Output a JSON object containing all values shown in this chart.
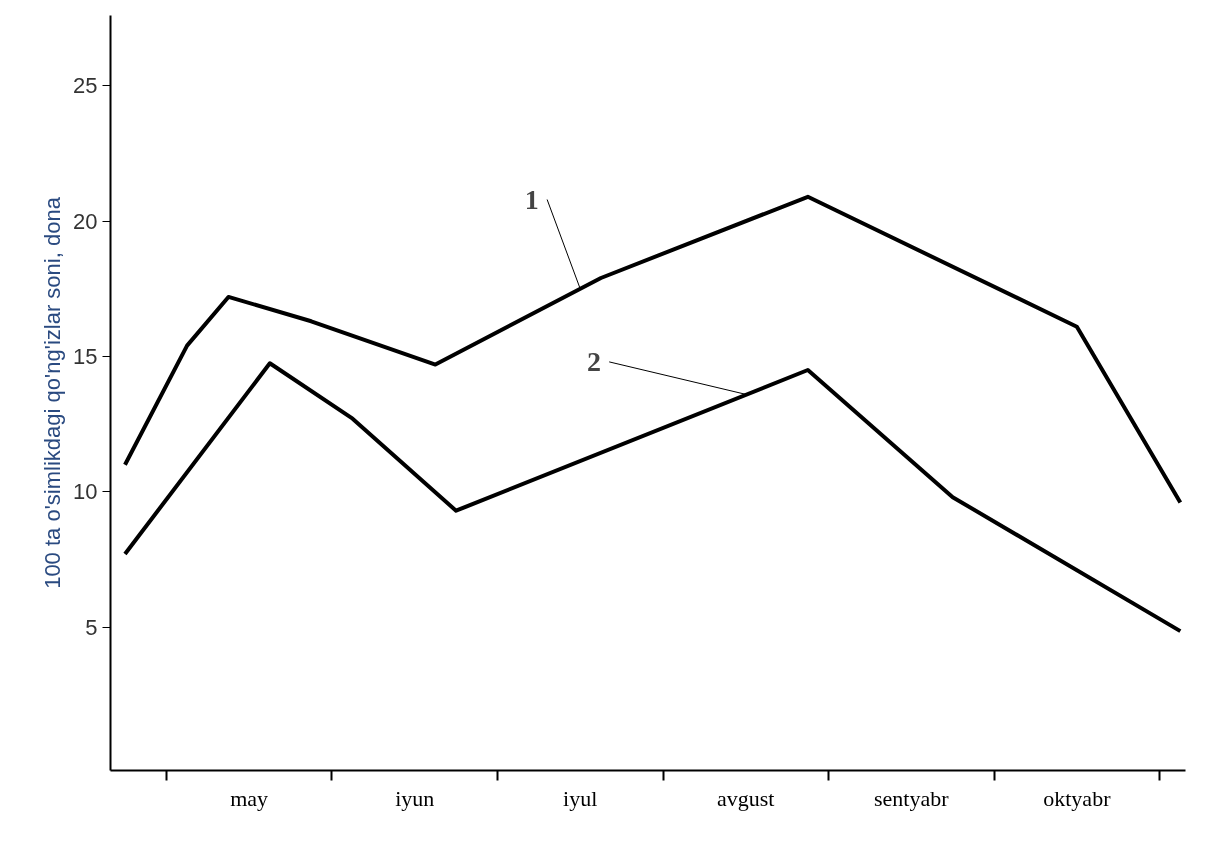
{
  "chart_data": {
    "type": "line",
    "ylabel": "100 ta o'simlikdagi qo'ng'izlar soni, dona",
    "categories": [
      null,
      null,
      null,
      null,
      null,
      null,
      "may",
      null,
      null,
      null,
      null,
      null,
      null,
      null,
      "iyun",
      null,
      null,
      null,
      null,
      null,
      null,
      null,
      "iyul",
      null,
      null,
      null,
      null,
      null,
      null,
      null,
      "avgust",
      null,
      null,
      null,
      null,
      null,
      null,
      null,
      "sentyabr",
      null,
      null,
      null,
      null,
      null,
      null,
      null,
      "oktyabr",
      null,
      null,
      null,
      null,
      null
    ],
    "ylim": [
      -0.3,
      27.6
    ],
    "yticks": [
      5,
      10,
      15,
      20,
      25
    ],
    "grid": false,
    "marker": "none",
    "line_style": "solid",
    "series": [
      {
        "color": "#000000",
        "values": [
          11.0,
          null,
          null,
          15.4,
          null,
          17.2,
          null,
          null,
          null,
          16.3,
          null,
          null,
          null,
          null,
          null,
          14.7,
          null,
          null,
          null,
          null,
          null,
          null,
          null,
          17.9,
          null,
          null,
          null,
          null,
          null,
          null,
          null,
          null,
          null,
          20.9,
          null,
          null,
          null,
          null,
          null,
          null,
          null,
          null,
          null,
          null,
          null,
          null,
          16.1,
          null,
          null,
          null,
          null,
          9.6
        ]
      },
      {
        "color": "#000000",
        "values": [
          7.7,
          null,
          null,
          null,
          null,
          null,
          null,
          14.75,
          null,
          null,
          null,
          12.7,
          null,
          null,
          null,
          null,
          9.3,
          null,
          null,
          null,
          null,
          null,
          null,
          null,
          null,
          null,
          null,
          null,
          null,
          null,
          null,
          null,
          null,
          14.5,
          null,
          null,
          null,
          null,
          null,
          null,
          9.8,
          null,
          null,
          null,
          null,
          null,
          null,
          null,
          null,
          null,
          null,
          4.85
        ]
      }
    ],
    "annotations": [
      {
        "text": "1",
        "x": "iyul",
        "y": 17.5
      },
      {
        "text": "2",
        "x": "avgust",
        "y": 13.6
      }
    ]
  }
}
